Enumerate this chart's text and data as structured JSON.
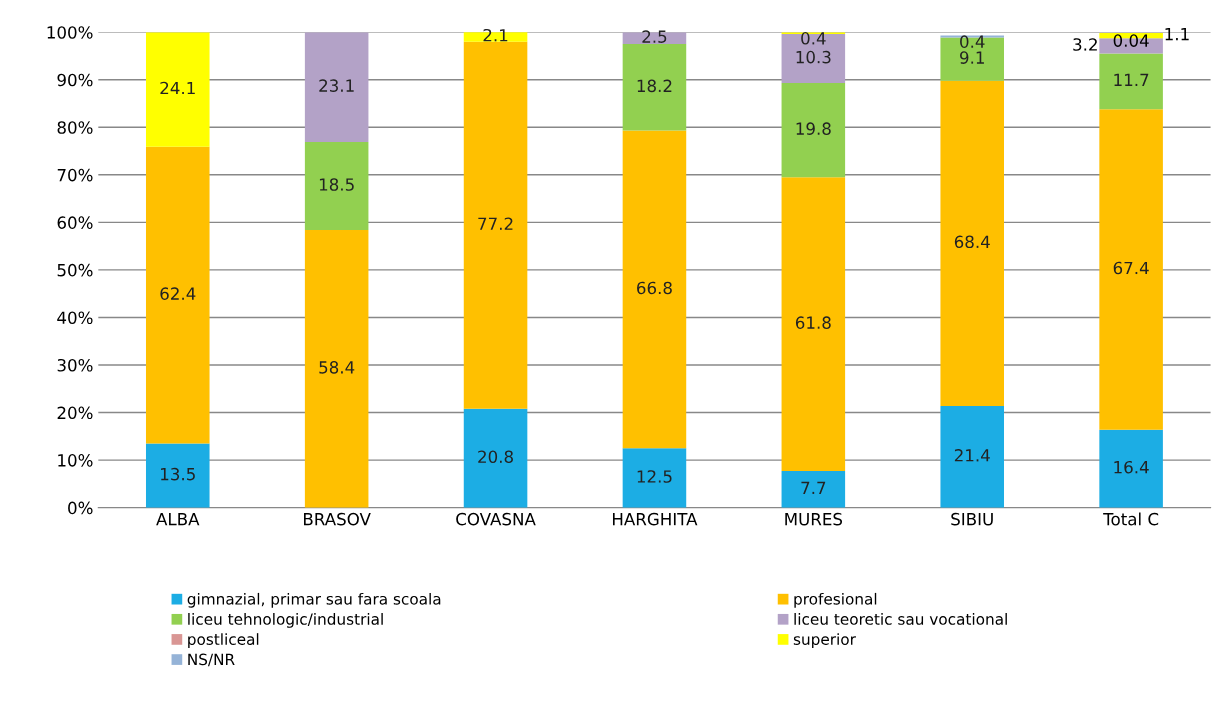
{
  "chart_data": {
    "type": "bar",
    "stacked": true,
    "categories": [
      "ALBA",
      "BRASOV",
      "COVASNA",
      "HARGHITA",
      "MURES",
      "SIBIU",
      "Total C"
    ],
    "series": [
      {
        "name": "gimnazial, primar sau fara scoala",
        "color": "#1cade4",
        "values": [
          13.5,
          null,
          20.8,
          12.5,
          7.7,
          21.4,
          16.4
        ]
      },
      {
        "name": "profesional",
        "color": "#ffc000",
        "values": [
          62.4,
          58.4,
          77.2,
          66.8,
          61.8,
          68.4,
          67.4
        ]
      },
      {
        "name": "liceu tehnologic/industrial",
        "color": "#92d050",
        "values": [
          null,
          18.5,
          null,
          18.2,
          19.8,
          9.1,
          11.7
        ]
      },
      {
        "name": "liceu teoretic sau vocational",
        "color": "#b3a2c7",
        "values": [
          null,
          23.1,
          null,
          2.5,
          10.3,
          null,
          3.2
        ]
      },
      {
        "name": "postliceal",
        "color": "#d99694",
        "values": [
          null,
          null,
          null,
          null,
          null,
          null,
          0.04
        ]
      },
      {
        "name": "superior",
        "color": "#ffff00",
        "values": [
          24.1,
          null,
          2.1,
          null,
          0.4,
          null,
          1.1
        ]
      },
      {
        "name": "NS/NR",
        "color": "#95b3d7",
        "values": [
          null,
          null,
          null,
          null,
          null,
          0.4,
          null
        ]
      }
    ],
    "data_labels": true,
    "ylim": [
      0,
      100
    ],
    "yticks": [
      {
        "value": 0,
        "label": "0%"
      },
      {
        "value": 10,
        "label": "10%"
      },
      {
        "value": 20,
        "label": "20%"
      },
      {
        "value": 30,
        "label": "30%"
      },
      {
        "value": 40,
        "label": "40%"
      },
      {
        "value": 50,
        "label": "50%"
      },
      {
        "value": 60,
        "label": "60%"
      },
      {
        "value": 70,
        "label": "70%"
      },
      {
        "value": 80,
        "label": "80%"
      },
      {
        "value": 90,
        "label": "90%"
      },
      {
        "value": 100,
        "label": "100%"
      }
    ],
    "grid": "y",
    "legend": "bottom"
  }
}
